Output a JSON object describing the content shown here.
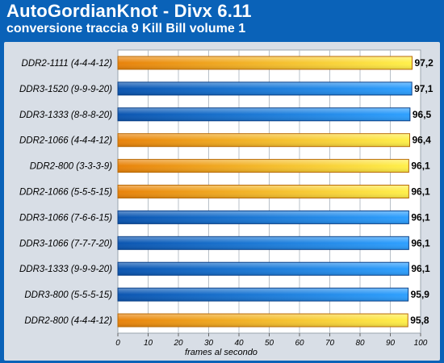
{
  "header": {
    "title": "AutoGordianKnot - Divx 6.11",
    "subtitle": "conversione traccia 9 Kill Bill volume 1"
  },
  "colors": {
    "frame": "#0a62b8",
    "panel": "#d8dee6",
    "ddr2_bar_start": "#e8820a",
    "ddr2_bar_end": "#fff04a",
    "ddr3_bar_start": "#0b55b0",
    "ddr3_bar_end": "#2ea0ff"
  },
  "chart_data": {
    "type": "bar",
    "orientation": "horizontal",
    "xlabel": "frames al secondo",
    "xlim": [
      0,
      100
    ],
    "xticks": [
      0,
      10,
      20,
      30,
      40,
      50,
      60,
      70,
      80,
      90,
      100
    ],
    "grid": true,
    "categories": [
      "DDR2-1111 (4-4-4-12)",
      "DDR3-1520 (9-9-9-20)",
      "DDR3-1333 (8-8-8-20)",
      "DDR2-1066 (4-4-4-12)",
      "DDR2-800 (3-3-3-9)",
      "DDR2-1066 (5-5-5-15)",
      "DDR3-1066 (7-6-6-15)",
      "DDR3-1066 (7-7-7-20)",
      "DDR3-1333 (9-9-9-20)",
      "DDR3-800 (5-5-5-15)",
      "DDR2-800 (4-4-4-12)"
    ],
    "values": [
      97.2,
      97.1,
      96.5,
      96.4,
      96.1,
      96.1,
      96.1,
      96.1,
      96.1,
      95.9,
      95.8
    ],
    "value_labels": [
      "97,2",
      "97,1",
      "96,5",
      "96,4",
      "96,1",
      "96,1",
      "96,1",
      "96,1",
      "96,1",
      "95,9",
      "95,8"
    ],
    "memory_type": [
      "DDR2",
      "DDR3",
      "DDR3",
      "DDR2",
      "DDR2",
      "DDR2",
      "DDR3",
      "DDR3",
      "DDR3",
      "DDR3",
      "DDR2"
    ]
  }
}
